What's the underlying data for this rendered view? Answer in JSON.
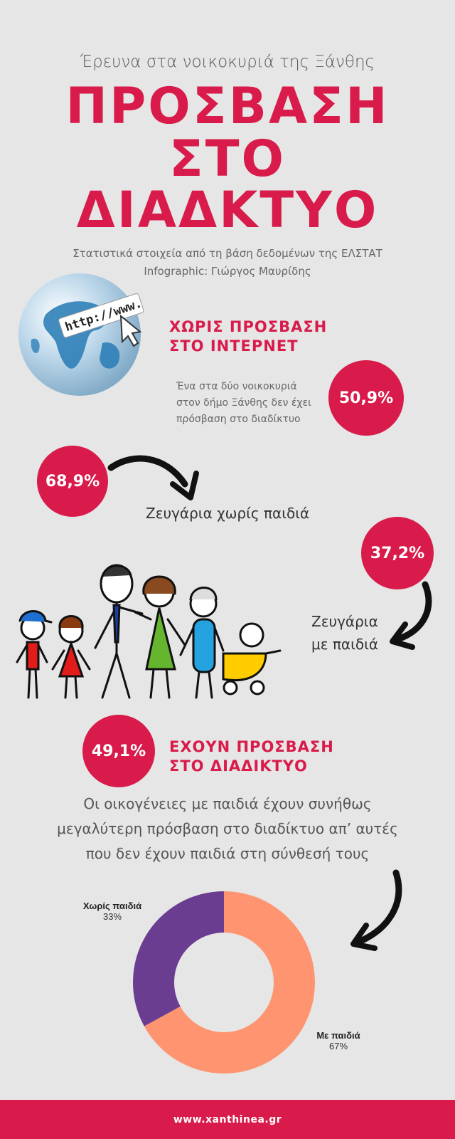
{
  "header": {
    "survey_line": "Έρευνα στα νοικοκυριά της Ξάνθης",
    "title_lines": [
      "ΠΡΟΣΒΑΣΗ",
      "ΣΤΟ",
      "ΔΙΑΔΚΤΥΟ"
    ],
    "source_line1": "Στατιστικά στοιχεία από τη βάση δεδομένων της ΕΛΣΤΑΤ",
    "source_line2": "Infographic: Γιώργος Μαυρίδης"
  },
  "globe": {
    "url_text": "http://www."
  },
  "no_access": {
    "heading_line1": "ΧΩΡΙΣ ΠΡΟΣΒΑΣΗ",
    "heading_line2": "ΣΤΟ ΙΝΤΕΡΝΕΤ",
    "desc_line1": "Ένα στα δύο νοικοκυριά",
    "desc_line2": "στον δήμο Ξάνθης δεν έχει",
    "desc_line3": "πρόσβαση στο διαδίκτυο",
    "value": "50,9%"
  },
  "couples_no_children": {
    "value": "68,9%",
    "label": "Ζευγάρια χωρίς παιδιά"
  },
  "couples_with_children": {
    "value": "37,2%",
    "label_line1": "Ζευγάρια",
    "label_line2": "με παιδιά"
  },
  "have_access": {
    "value": "49,1%",
    "heading_line1": "ΕΧΟΥΝ ΠΡΟΣΒΑΣΗ",
    "heading_line2": "ΣΤΟ ΔΙΑΔΙΚΤΥΟ"
  },
  "note": {
    "line1": "Οι οικογένειες με παιδιά έχουν συνήθως",
    "line2": "μεγαλύτερη πρόσβαση στο διαδίκτυο απ’ αυτές",
    "line3": "που δεν έχουν παιδιά στη σύνθεσή τους"
  },
  "chart_data": {
    "type": "pie",
    "donut": true,
    "categories": [
      "Με παιδιά",
      "Χωρίς παιδιά"
    ],
    "values": [
      67,
      33
    ],
    "value_labels": [
      "67%",
      "33%"
    ],
    "colors": [
      "#ff9570",
      "#6a3d91"
    ]
  },
  "footer": {
    "url": "www.xanthinea.gr"
  },
  "colors": {
    "accent": "#d81b4a",
    "background": "#e6e6e6"
  }
}
